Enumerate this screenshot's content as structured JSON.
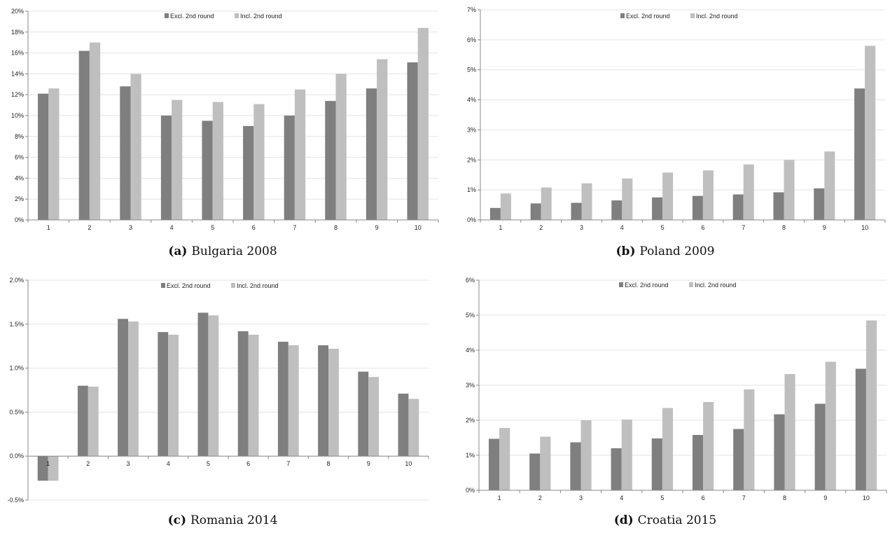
{
  "colors": {
    "excl": "#7f7f7f",
    "incl": "#bfbfbf",
    "axis": "#888888",
    "grid": "#e3e3e3"
  },
  "chart_data": [
    {
      "type": "bar",
      "caption_label": "(a)",
      "caption_text": "Bulgaria 2008",
      "categories": [
        "1",
        "2",
        "3",
        "4",
        "5",
        "6",
        "7",
        "8",
        "9",
        "10"
      ],
      "yticks": [
        "0%",
        "2%",
        "4%",
        "6%",
        "8%",
        "10%",
        "12%",
        "14%",
        "16%",
        "18%",
        "20%"
      ],
      "ylim": [
        0,
        20
      ],
      "legend_position": "top-center",
      "series": [
        {
          "name": "Excl. 2nd round",
          "values": [
            12.1,
            16.2,
            12.8,
            10.0,
            9.5,
            9.0,
            10.0,
            11.4,
            12.6,
            15.1
          ]
        },
        {
          "name": "Incl. 2nd round",
          "values": [
            12.6,
            17.0,
            14.0,
            11.5,
            11.3,
            11.1,
            12.5,
            14.0,
            15.4,
            18.4
          ]
        }
      ]
    },
    {
      "type": "bar",
      "caption_label": "(b)",
      "caption_text": "Poland 2009",
      "categories": [
        "1",
        "2",
        "3",
        "4",
        "5",
        "6",
        "7",
        "8",
        "9",
        "10"
      ],
      "yticks": [
        "0%",
        "1%",
        "2%",
        "3%",
        "4%",
        "5%",
        "6%",
        "7%"
      ],
      "ylim": [
        0,
        7
      ],
      "legend_position": "top-center",
      "series": [
        {
          "name": "Excl. 2nd round",
          "values": [
            0.4,
            0.55,
            0.57,
            0.65,
            0.75,
            0.8,
            0.85,
            0.92,
            1.05,
            4.38
          ]
        },
        {
          "name": "Incl. 2nd round",
          "values": [
            0.88,
            1.08,
            1.22,
            1.38,
            1.58,
            1.65,
            1.85,
            2.0,
            2.28,
            5.8
          ]
        }
      ]
    },
    {
      "type": "bar",
      "caption_label": "(c)",
      "caption_text": "Romania 2014",
      "categories": [
        "1",
        "2",
        "3",
        "4",
        "5",
        "6",
        "7",
        "8",
        "9",
        "10"
      ],
      "yticks": [
        "-0.5%",
        "0.0%",
        "0.5%",
        "1.0%",
        "1.5%",
        "2.0%"
      ],
      "ylim": [
        -0.5,
        2.0
      ],
      "legend_position": "top-center",
      "series": [
        {
          "name": "Excl. 2nd round",
          "values": [
            -0.28,
            0.8,
            1.56,
            1.41,
            1.63,
            1.42,
            1.3,
            1.26,
            0.96,
            0.71
          ]
        },
        {
          "name": "Incl. 2nd round",
          "values": [
            -0.28,
            0.79,
            1.53,
            1.38,
            1.6,
            1.38,
            1.26,
            1.22,
            0.9,
            0.65
          ]
        }
      ]
    },
    {
      "type": "bar",
      "caption_label": "(d)",
      "caption_text": "Croatia 2015",
      "categories": [
        "1",
        "2",
        "3",
        "4",
        "5",
        "6",
        "7",
        "8",
        "9",
        "10"
      ],
      "yticks": [
        "0%",
        "1%",
        "2%",
        "3%",
        "4%",
        "5%",
        "6%"
      ],
      "ylim": [
        0,
        6
      ],
      "legend_position": "top-center",
      "series": [
        {
          "name": "Excl. 2nd round",
          "values": [
            1.47,
            1.05,
            1.37,
            1.2,
            1.48,
            1.58,
            1.75,
            2.17,
            2.47,
            3.47
          ]
        },
        {
          "name": "Incl. 2nd round",
          "values": [
            1.78,
            1.53,
            2.0,
            2.02,
            2.35,
            2.52,
            2.88,
            3.32,
            3.67,
            4.85
          ]
        }
      ]
    }
  ]
}
